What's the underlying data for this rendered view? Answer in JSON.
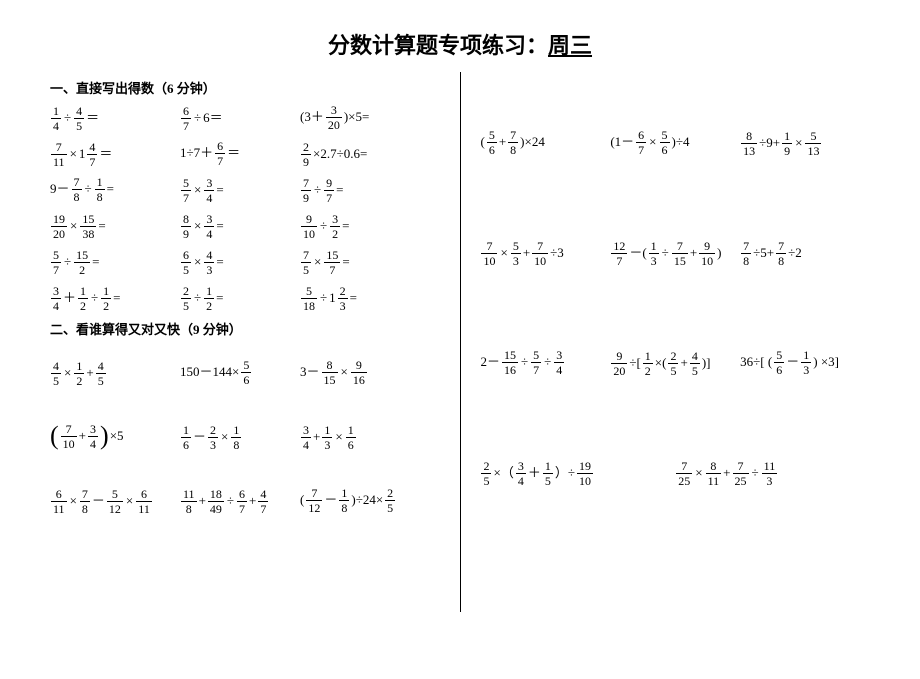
{
  "title": {
    "prefix": "分数计算题专项练习：",
    "suffix": "周三"
  },
  "section1": {
    "header": "一、直接写出得数（6 分钟）",
    "rows": [
      [
        {
          "t": "frac_div_frac",
          "a": [
            1,
            4
          ],
          "b": [
            4,
            5
          ],
          "eq": "＝"
        },
        {
          "t": "frac_div_num",
          "a": [
            6,
            7
          ],
          "n": "6",
          "eq": "＝"
        },
        {
          "t": "paren_num_plus_frac_times",
          "n": "3",
          "a": [
            3,
            20
          ],
          "m": "5",
          "eq": "="
        }
      ],
      [
        {
          "t": "frac_times_mixed",
          "a": [
            7,
            11
          ],
          "w": "1",
          "b": [
            4,
            7
          ],
          "eq": "＝"
        },
        {
          "t": "num_div_num_plus_frac",
          "x": "1",
          "y": "7",
          "a": [
            6,
            7
          ],
          "eq": "＝"
        },
        {
          "t": "frac_times_num_div_num",
          "a": [
            2,
            9
          ],
          "x": "2.7",
          "y": "0.6",
          "eq": "="
        }
      ],
      [
        {
          "t": "num_minus_frac_div_frac",
          "n": "9",
          "a": [
            7,
            8
          ],
          "b": [
            1,
            8
          ],
          "eq": "="
        },
        {
          "t": "frac_times_frac",
          "a": [
            5,
            7
          ],
          "b": [
            3,
            4
          ],
          "eq": "="
        },
        {
          "t": "frac_div_frac",
          "a": [
            7,
            9
          ],
          "b": [
            9,
            7
          ],
          "eq": "="
        }
      ],
      [
        {
          "t": "frac_times_frac",
          "a": [
            19,
            20
          ],
          "b": [
            15,
            38
          ],
          "eq": "="
        },
        {
          "t": "frac_times_frac",
          "a": [
            8,
            9
          ],
          "b": [
            3,
            4
          ],
          "eq": "="
        },
        {
          "t": "frac_div_frac",
          "a": [
            9,
            10
          ],
          "b": [
            3,
            2
          ],
          "eq": "="
        }
      ],
      [
        {
          "t": "frac_div_frac",
          "a": [
            5,
            7
          ],
          "b": [
            15,
            2
          ],
          "eq": "="
        },
        {
          "t": "frac_times_frac",
          "a": [
            6,
            5
          ],
          "b": [
            4,
            3
          ],
          "eq": "="
        },
        {
          "t": "frac_times_frac",
          "a": [
            7,
            5
          ],
          "b": [
            15,
            7
          ],
          "eq": "="
        }
      ],
      [
        {
          "t": "frac_plus_frac_div_frac",
          "a": [
            3,
            4
          ],
          "b": [
            1,
            2
          ],
          "c": [
            1,
            2
          ],
          "eq": "="
        },
        {
          "t": "frac_div_frac",
          "a": [
            2,
            5
          ],
          "b": [
            1,
            2
          ],
          "eq": "="
        },
        {
          "t": "frac_div_mixed",
          "a": [
            5,
            18
          ],
          "w": "1",
          "b": [
            2,
            3
          ],
          "eq": "="
        }
      ]
    ]
  },
  "section2": {
    "header": "二、看谁算得又对又快（9 分钟）",
    "rows": [
      [
        {
          "t": "frac_times_frac_plus_frac",
          "a": [
            4,
            5
          ],
          "b": [
            1,
            2
          ],
          "c": [
            4,
            5
          ]
        },
        {
          "t": "num_minus_num_times_frac",
          "x": "150",
          "y": "144",
          "a": [
            5,
            6
          ]
        },
        {
          "t": "num_minus_frac_times_frac",
          "n": "3",
          "a": [
            8,
            15
          ],
          "b": [
            9,
            16
          ]
        }
      ],
      [
        {
          "t": "bigparen_frac_plus_frac_times_num",
          "a": [
            7,
            10
          ],
          "b": [
            3,
            4
          ],
          "n": "5"
        },
        {
          "t": "frac_minus_frac_times_frac",
          "a": [
            1,
            6
          ],
          "b": [
            2,
            3
          ],
          "c": [
            1,
            8
          ]
        },
        {
          "t": "frac_plus_frac_times_frac",
          "a": [
            3,
            4
          ],
          "b": [
            1,
            3
          ],
          "c": [
            1,
            6
          ]
        }
      ],
      [
        {
          "t": "frac_times_frac_minus_frac_times_frac",
          "a": [
            6,
            11
          ],
          "b": [
            7,
            8
          ],
          "c": [
            5,
            12
          ],
          "d": [
            6,
            11
          ]
        },
        {
          "t": "frac_plus_frac_div_frac_plus_frac",
          "a": [
            11,
            8
          ],
          "b": [
            18,
            49
          ],
          "c": [
            6,
            7
          ],
          "d": [
            4,
            7
          ]
        },
        {
          "t": "paren_frac_minus_frac_div_num_times_frac",
          "a": [
            7,
            12
          ],
          "b": [
            1,
            8
          ],
          "n": "24",
          "c": [
            2,
            5
          ]
        }
      ]
    ]
  },
  "right": {
    "rows": [
      [
        {
          "t": "paren_frac_plus_frac_times_num",
          "a": [
            5,
            6
          ],
          "b": [
            7,
            8
          ],
          "n": "24"
        },
        {
          "t": "paren_num_minus_frac_times_frac_div_num",
          "x": "1",
          "a": [
            6,
            7
          ],
          "b": [
            5,
            6
          ],
          "n": "4"
        },
        {
          "t": "frac_div_num_plus_frac_times_frac",
          "a": [
            8,
            13
          ],
          "n": "9",
          "b": [
            1,
            9
          ],
          "c": [
            5,
            13
          ]
        }
      ],
      [
        {
          "t": "frac_times_frac_plus_frac_div_num",
          "a": [
            7,
            10
          ],
          "b": [
            5,
            3
          ],
          "c": [
            7,
            10
          ],
          "n": "3"
        },
        {
          "t": "frac_minus_paren_frac_div_frac_plus_frac",
          "a": [
            12,
            7
          ],
          "b": [
            1,
            3
          ],
          "c": [
            7,
            15
          ],
          "d": [
            9,
            10
          ]
        },
        {
          "t": "frac_div_num_plus_frac_div_num",
          "a": [
            7,
            8
          ],
          "x": "5",
          "b": [
            7,
            8
          ],
          "y": "2"
        }
      ],
      [
        {
          "t": "num_minus_frac_div_frac_div_frac",
          "n": "2",
          "a": [
            15,
            16
          ],
          "b": [
            5,
            7
          ],
          "c": [
            3,
            4
          ]
        },
        {
          "t": "frac_div_bracket_frac_times_paren",
          "a": [
            9,
            20
          ],
          "b": [
            1,
            2
          ],
          "c": [
            2,
            5
          ],
          "d": [
            4,
            5
          ]
        },
        {
          "t": "num_div_bracket_paren_frac_minus_frac_times_num",
          "x": "36",
          "a": [
            5,
            6
          ],
          "b": [
            1,
            3
          ],
          "n": "3"
        }
      ],
      [
        {
          "t": "frac_times_paren_frac_plus_frac_div_frac",
          "a": [
            2,
            5
          ],
          "b": [
            3,
            4
          ],
          "c": [
            1,
            5
          ],
          "d": [
            19,
            10
          ]
        },
        {
          "t": "frac_times_frac_plus_frac_div_frac",
          "a": [
            7,
            25
          ],
          "b": [
            8,
            11
          ],
          "c": [
            7,
            25
          ],
          "d": [
            11,
            3
          ]
        }
      ]
    ]
  }
}
